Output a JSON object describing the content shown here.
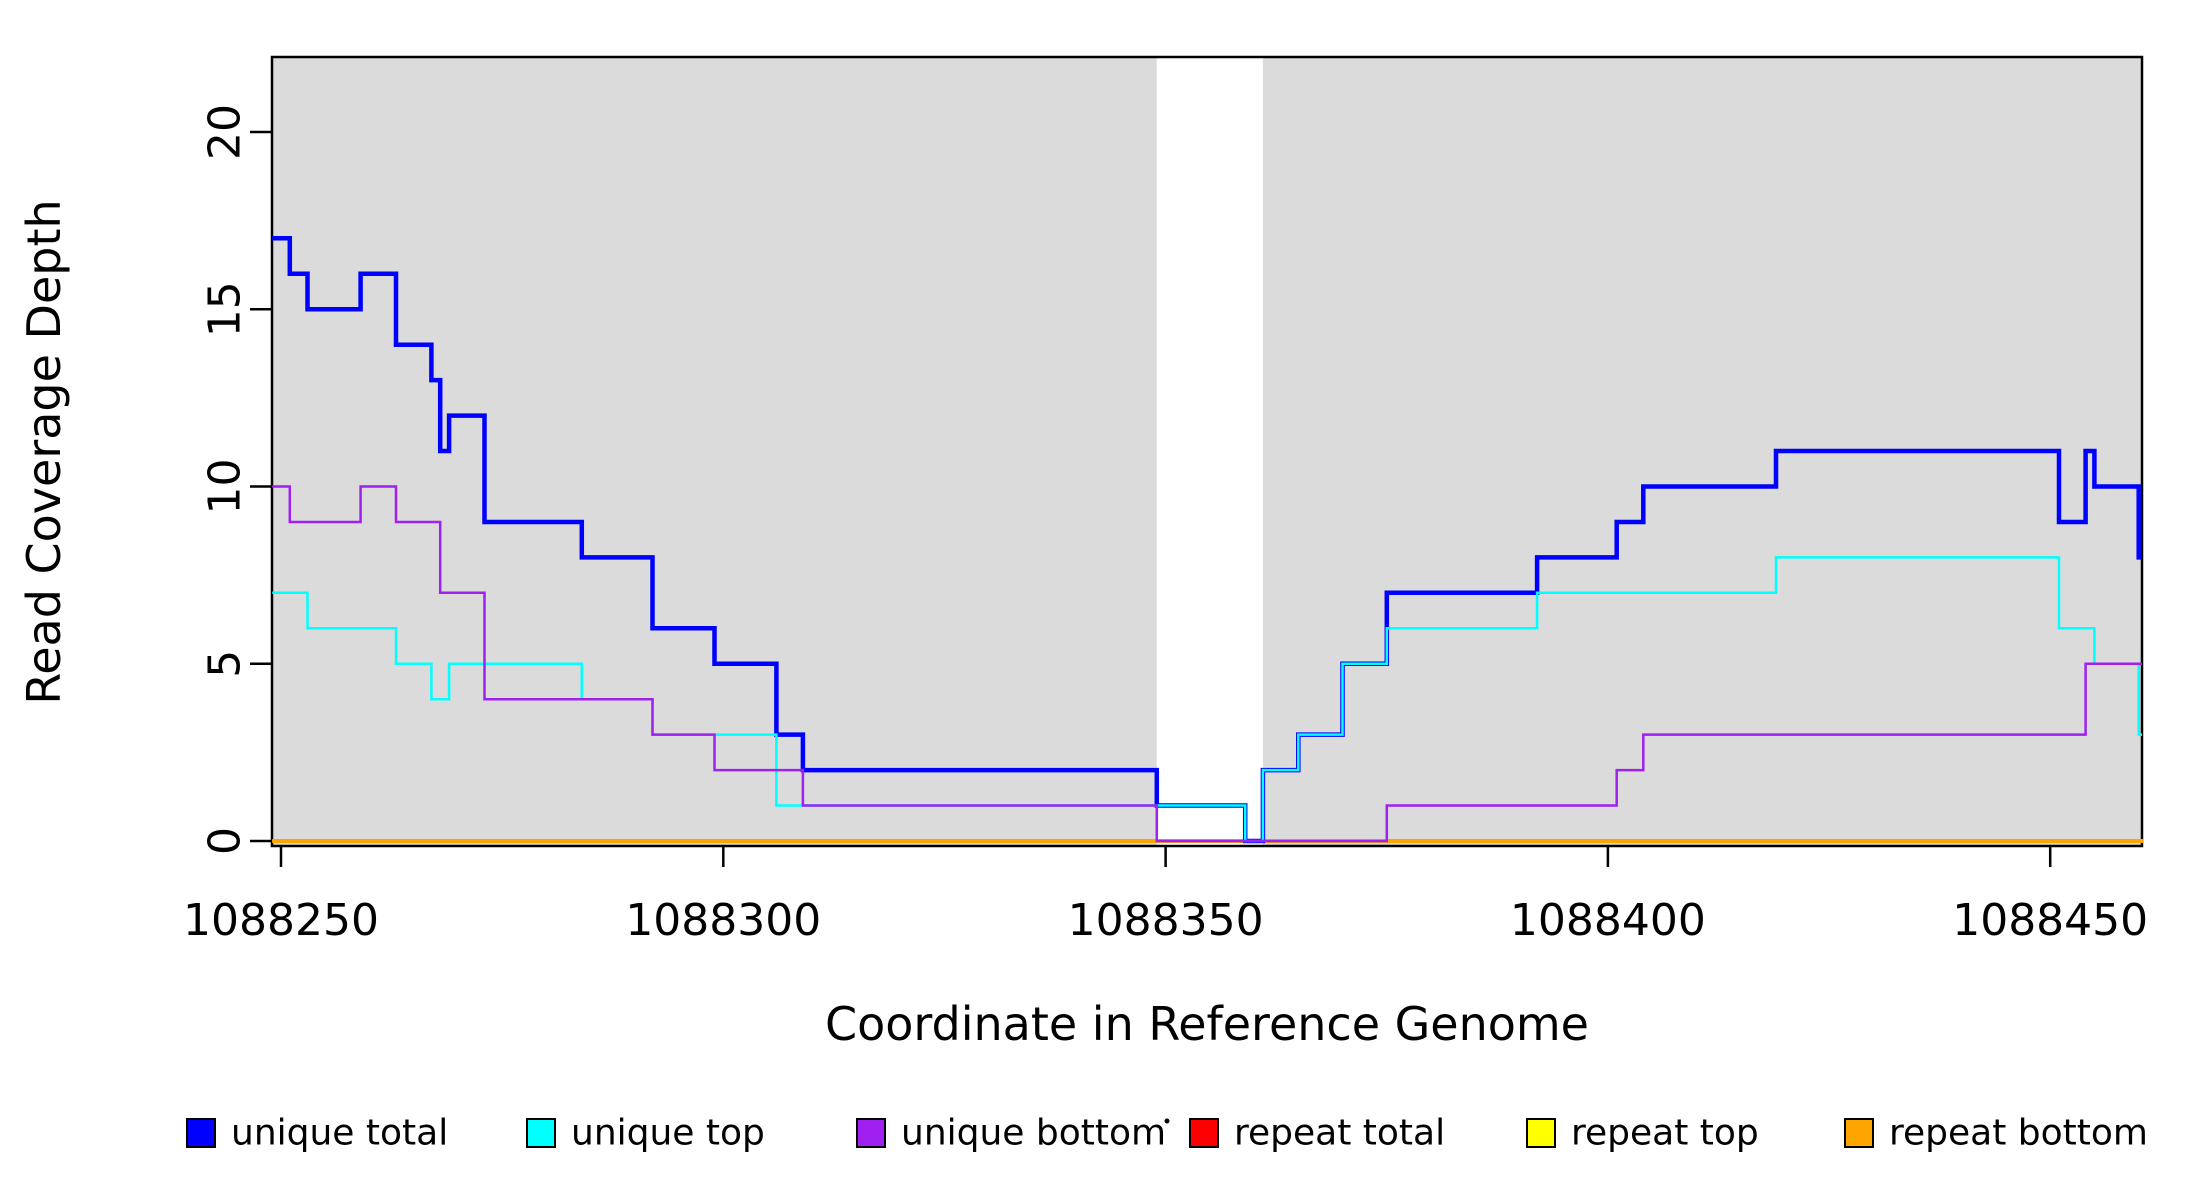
{
  "chart_data": {
    "type": "line",
    "subtype": "step-post",
    "title": "",
    "xlabel": "Coordinate in Reference Genome",
    "ylabel": "Read Coverage Depth",
    "xlim": [
      1088249,
      1088460.5
    ],
    "ylim": [
      0,
      22.1
    ],
    "x_ticks": [
      1088250,
      1088300,
      1088350,
      1088400,
      1088450
    ],
    "y_ticks": [
      0,
      5,
      10,
      15,
      20
    ],
    "grid": false,
    "shade_color": "#DBDBDB",
    "shaded_regions": [
      {
        "x0": 1088249,
        "x1": 1088349
      },
      {
        "x0": 1088361,
        "x1": 1088460.5
      }
    ],
    "series": [
      {
        "name": "repeat total",
        "color": "#FF0000",
        "width": 2,
        "points": [
          [
            1088249,
            0
          ],
          [
            1088460.5,
            0
          ]
        ]
      },
      {
        "name": "repeat top",
        "color": "#FFFF00",
        "width": 2,
        "points": [
          [
            1088249,
            0
          ],
          [
            1088460.5,
            0
          ]
        ]
      },
      {
        "name": "repeat bottom",
        "color": "#FFA500",
        "width": 4,
        "points": [
          [
            1088249,
            0
          ],
          [
            1088460.5,
            0
          ]
        ]
      },
      {
        "name": "unique total",
        "color": "#0000FF",
        "width": 4.5,
        "points": [
          [
            1088249,
            17
          ],
          [
            1088251,
            16
          ],
          [
            1088253,
            15
          ],
          [
            1088259,
            16
          ],
          [
            1088263,
            14
          ],
          [
            1088267,
            13
          ],
          [
            1088268,
            11
          ],
          [
            1088269,
            12
          ],
          [
            1088273,
            9
          ],
          [
            1088284,
            8
          ],
          [
            1088292,
            6
          ],
          [
            1088299,
            5
          ],
          [
            1088306,
            3
          ],
          [
            1088309,
            2
          ],
          [
            1088349,
            1
          ],
          [
            1088359,
            0
          ],
          [
            1088361,
            2
          ],
          [
            1088365,
            3
          ],
          [
            1088370,
            5
          ],
          [
            1088375,
            7
          ],
          [
            1088392,
            8
          ],
          [
            1088401,
            9
          ],
          [
            1088404,
            10
          ],
          [
            1088419,
            11
          ],
          [
            1088451,
            9
          ],
          [
            1088454,
            11
          ],
          [
            1088455,
            10
          ],
          [
            1088460,
            8
          ]
        ]
      },
      {
        "name": "unique top",
        "color": "#00FFFF",
        "width": 2.5,
        "points": [
          [
            1088249,
            7
          ],
          [
            1088253,
            6
          ],
          [
            1088263,
            5
          ],
          [
            1088267,
            4
          ],
          [
            1088269,
            5
          ],
          [
            1088284,
            4
          ],
          [
            1088292,
            3
          ],
          [
            1088306,
            1
          ],
          [
            1088359,
            0
          ],
          [
            1088361,
            2
          ],
          [
            1088365,
            3
          ],
          [
            1088370,
            5
          ],
          [
            1088375,
            6
          ],
          [
            1088392,
            7
          ],
          [
            1088419,
            8
          ],
          [
            1088451,
            6
          ],
          [
            1088455,
            5
          ],
          [
            1088460,
            3
          ]
        ]
      },
      {
        "name": "unique bottom",
        "color": "#A020F0",
        "width": 2.5,
        "points": [
          [
            1088249,
            10
          ],
          [
            1088251,
            9
          ],
          [
            1088259,
            10
          ],
          [
            1088263,
            9
          ],
          [
            1088268,
            7
          ],
          [
            1088273,
            4
          ],
          [
            1088292,
            3
          ],
          [
            1088299,
            2
          ],
          [
            1088309,
            1
          ],
          [
            1088349,
            0
          ],
          [
            1088375,
            1
          ],
          [
            1088401,
            2
          ],
          [
            1088404,
            3
          ],
          [
            1088454,
            5
          ],
          [
            1088460,
            5
          ]
        ]
      }
    ],
    "legend": {
      "position": "bottom",
      "entries": [
        {
          "label": "unique total",
          "color": "#0000FF"
        },
        {
          "label": "unique top",
          "color": "#00FFFF"
        },
        {
          "label": "unique bottom",
          "color": "#A020F0"
        },
        {
          "label": "repeat total",
          "color": "#FF0000"
        },
        {
          "label": "repeat top",
          "color": "#FFFF00"
        },
        {
          "label": "repeat bottom",
          "color": "#FFA500"
        }
      ]
    }
  }
}
